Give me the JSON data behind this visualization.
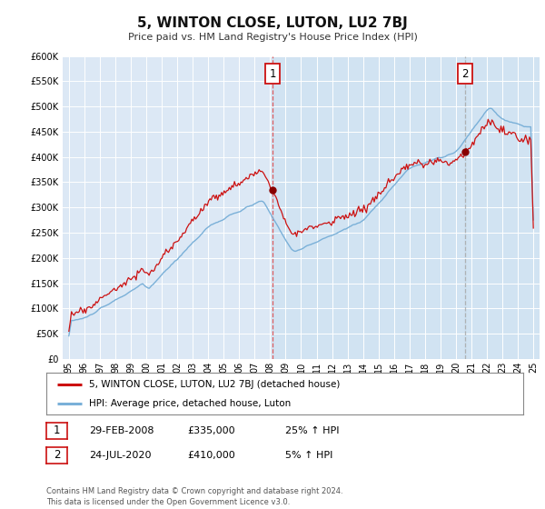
{
  "title": "5, WINTON CLOSE, LUTON, LU2 7BJ",
  "subtitle": "Price paid vs. HM Land Registry's House Price Index (HPI)",
  "background_color": "#ffffff",
  "plot_background_color": "#dce8f5",
  "grid_color": "#ffffff",
  "hpi_line_color": "#7ab0d8",
  "price_line_color": "#cc1111",
  "sale1_date_x": 2008.15,
  "sale1_price": 335000,
  "sale2_date_x": 2020.58,
  "sale2_price": 410000,
  "ylim_min": 0,
  "ylim_max": 600000,
  "xlim_min": 1994.6,
  "xlim_max": 2025.4,
  "legend_line1": "5, WINTON CLOSE, LUTON, LU2 7BJ (detached house)",
  "legend_line2": "HPI: Average price, detached house, Luton",
  "annotation1_date": "29-FEB-2008",
  "annotation1_price": "£335,000",
  "annotation1_hpi": "25% ↑ HPI",
  "annotation2_date": "24-JUL-2020",
  "annotation2_price": "£410,000",
  "annotation2_hpi": "5% ↑ HPI",
  "footer": "Contains HM Land Registry data © Crown copyright and database right 2024.\nThis data is licensed under the Open Government Licence v3.0."
}
